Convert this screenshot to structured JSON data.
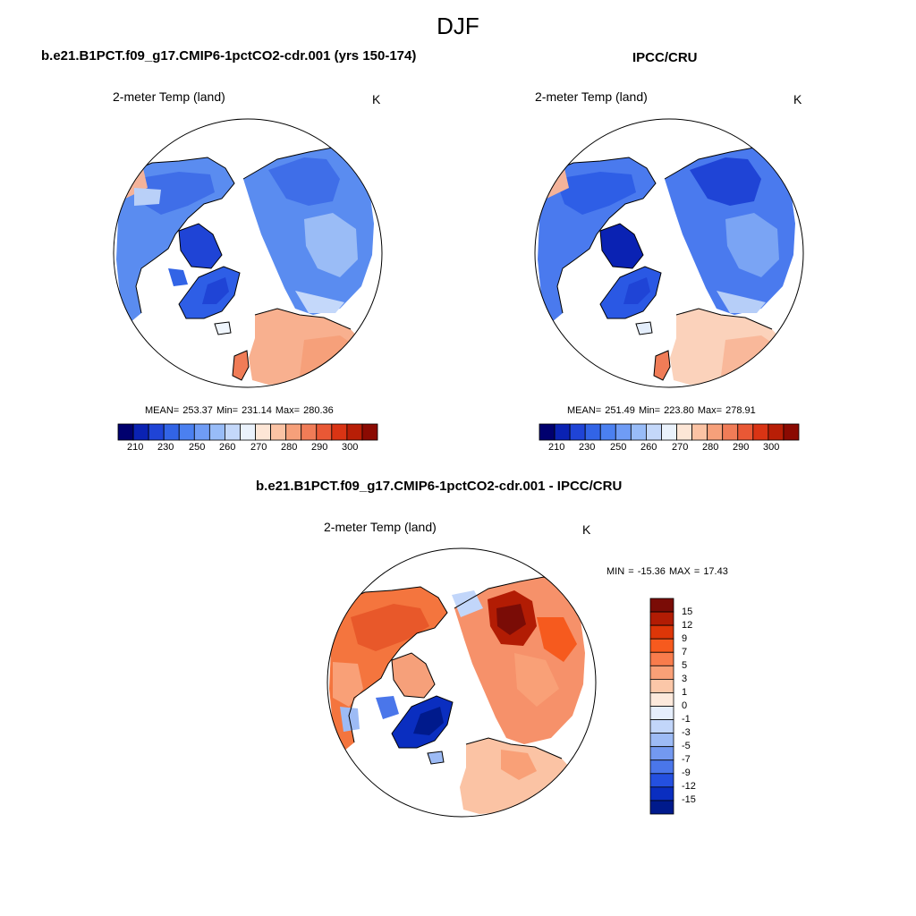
{
  "figure": {
    "title": "DJF"
  },
  "panels": [
    {
      "id": "model",
      "title": "b.e21.B1PCT.f09_g17.CMIP6-1pctCO2-cdr.001 (yrs 150-174)",
      "variable": "2-meter Temp (land)",
      "units": "K",
      "stats": "MEAN= 253.37  Min= 231.14  Max= 280.36"
    },
    {
      "id": "obs",
      "title": "IPCC/CRU",
      "variable": "2-meter Temp (land)",
      "units": "K",
      "stats": "MEAN= 251.49  Min= 223.80  Max= 278.91"
    },
    {
      "id": "diff",
      "title": "b.e21.B1PCT.f09_g17.CMIP6-1pctCO2-cdr.001 - IPCC/CRU",
      "variable": "2-meter Temp (land)",
      "units": "K",
      "stats": "MIN = -15.36 MAX =  17.43"
    }
  ],
  "abs_colorbar": {
    "tick_labels": [
      "210",
      "230",
      "250",
      "260",
      "270",
      "280",
      "290",
      "300"
    ],
    "colors": [
      "#00006e",
      "#0a22b3",
      "#1f44d6",
      "#3264e6",
      "#4b80f0",
      "#6f9cf5",
      "#98bcf8",
      "#c4d8fa",
      "#eaf2fc",
      "#fde6d6",
      "#fbc3a4",
      "#f6a07a",
      "#f07c57",
      "#e95835",
      "#d93414",
      "#b81e06",
      "#8b0a02"
    ]
  },
  "diff_colorbar": {
    "tick_labels": [
      "15",
      "12",
      "9",
      "7",
      "5",
      "3",
      "1",
      "0",
      "-1",
      "-3",
      "-5",
      "-7",
      "-9",
      "-12",
      "-15"
    ],
    "colors": [
      "#7a0c06",
      "#b21c04",
      "#dd3608",
      "#f65a1e",
      "#f87c4c",
      "#f9a077",
      "#fbc7a8",
      "#fde9dc",
      "#e6eefc",
      "#c2d6fa",
      "#9dbbf5",
      "#7399f0",
      "#4a76ea",
      "#2450e0",
      "#0a2ec0",
      "#001a8c"
    ]
  }
}
